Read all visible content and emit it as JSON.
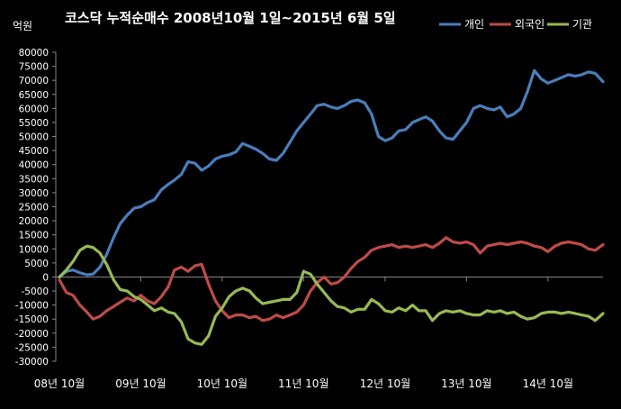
{
  "chart_data": {
    "type": "line",
    "title": "코스닥  누적순매수 2008년10월 1일~2015년 6월 5일",
    "unit_label": "억원",
    "ylim": [
      -30000,
      80000
    ],
    "y_ticks": [
      80000,
      75000,
      70000,
      65000,
      60000,
      55000,
      50000,
      45000,
      40000,
      35000,
      30000,
      25000,
      20000,
      15000,
      10000,
      5000,
      0,
      -5000,
      -10000,
      -15000,
      -20000,
      -25000,
      -30000
    ],
    "x_tick_labels": [
      "08년 10월",
      "09년 10월",
      "10년 10월",
      "11년 10월",
      "12년 10월",
      "13년 10월",
      "14년 10월"
    ],
    "grid": false,
    "legend_position": "top-right",
    "xlim": [
      "2008-10-01",
      "2015-06-05"
    ],
    "series": [
      {
        "name": "개인",
        "color": "#4a7ebb",
        "x": [
          "2008-10-01",
          "2008-11-01",
          "2008-12-01",
          "2009-01-01",
          "2009-02-01",
          "2009-03-01",
          "2009-04-01",
          "2009-05-01",
          "2009-06-01",
          "2009-07-01",
          "2009-08-01",
          "2009-09-01",
          "2009-10-01",
          "2009-11-01",
          "2009-12-01",
          "2010-01-01",
          "2010-02-01",
          "2010-03-01",
          "2010-04-01",
          "2010-05-01",
          "2010-06-01",
          "2010-07-01",
          "2010-08-01",
          "2010-09-01",
          "2010-10-01",
          "2010-11-01",
          "2010-12-01",
          "2011-01-01",
          "2011-02-01",
          "2011-03-01",
          "2011-04-01",
          "2011-05-01",
          "2011-06-01",
          "2011-07-01",
          "2011-08-01",
          "2011-09-01",
          "2011-10-01",
          "2011-11-01",
          "2011-12-01",
          "2012-01-01",
          "2012-02-01",
          "2012-03-01",
          "2012-04-01",
          "2012-05-01",
          "2012-06-01",
          "2012-07-01",
          "2012-08-01",
          "2012-09-01",
          "2012-10-01",
          "2012-11-01",
          "2012-12-01",
          "2013-01-01",
          "2013-02-01",
          "2013-03-01",
          "2013-04-01",
          "2013-05-01",
          "2013-06-01",
          "2013-07-01",
          "2013-08-01",
          "2013-09-01",
          "2013-10-01",
          "2013-11-01",
          "2013-12-01",
          "2014-01-01",
          "2014-02-01",
          "2014-03-01",
          "2014-04-01",
          "2014-05-01",
          "2014-06-01",
          "2014-07-01",
          "2014-08-01",
          "2014-09-01",
          "2014-10-01",
          "2014-11-01",
          "2014-12-01",
          "2015-01-01",
          "2015-02-01",
          "2015-03-01",
          "2015-04-01",
          "2015-05-01",
          "2015-06-05"
        ],
        "values": [
          0,
          2000,
          2500,
          1500,
          800,
          1000,
          3500,
          8000,
          14000,
          19000,
          22000,
          24500,
          25000,
          26500,
          27500,
          31000,
          33000,
          34500,
          36500,
          41000,
          40500,
          38000,
          39500,
          42000,
          43000,
          43500,
          44500,
          47500,
          46500,
          45500,
          44000,
          42000,
          41500,
          44000,
          48000,
          52000,
          55000,
          58000,
          61000,
          61500,
          60500,
          60000,
          61000,
          62500,
          63000,
          62000,
          58000,
          50000,
          48500,
          49500,
          52000,
          52500,
          55000,
          56000,
          57000,
          55500,
          52000,
          49500,
          49000,
          52000,
          55000,
          60000,
          61000,
          60000,
          59500,
          60500,
          57000,
          58000,
          60000,
          66000,
          73500,
          70500,
          69000,
          70000,
          71000,
          72000,
          71500,
          72000,
          73000,
          72500,
          69500
        ],
        "x_cut": 67
      },
      {
        "name": "외국인",
        "color": "#be4b48",
        "x": [
          "2008-10-01",
          "2008-11-01",
          "2008-12-01",
          "2009-01-01",
          "2009-02-01",
          "2009-03-01",
          "2009-04-01",
          "2009-05-01",
          "2009-06-01",
          "2009-07-01",
          "2009-08-01",
          "2009-09-01",
          "2009-10-01",
          "2009-11-01",
          "2009-12-01",
          "2010-01-01",
          "2010-02-01",
          "2010-03-01",
          "2010-04-01",
          "2010-05-01",
          "2010-06-01",
          "2010-07-01",
          "2010-08-01",
          "2010-09-01",
          "2010-10-01",
          "2010-11-01",
          "2010-12-01",
          "2011-01-01",
          "2011-02-01",
          "2011-03-01",
          "2011-04-01",
          "2011-05-01",
          "2011-06-01",
          "2011-07-01",
          "2011-08-01",
          "2011-09-01",
          "2011-10-01",
          "2011-11-01",
          "2011-12-01",
          "2012-01-01",
          "2012-02-01",
          "2012-03-01",
          "2012-04-01",
          "2012-05-01",
          "2012-06-01",
          "2012-07-01",
          "2012-08-01",
          "2012-09-01",
          "2012-10-01",
          "2012-11-01",
          "2012-12-01",
          "2013-01-01",
          "2013-02-01",
          "2013-03-01",
          "2013-04-01",
          "2013-05-01",
          "2013-06-01",
          "2013-07-01",
          "2013-08-01",
          "2013-09-01",
          "2013-10-01",
          "2013-11-01",
          "2013-12-01",
          "2014-01-01",
          "2014-02-01",
          "2014-03-01",
          "2014-04-01",
          "2014-05-01",
          "2014-06-01",
          "2014-07-01",
          "2014-08-01",
          "2014-09-01",
          "2014-10-01",
          "2014-11-01",
          "2014-12-01",
          "2015-01-01",
          "2015-02-01",
          "2015-03-01",
          "2015-04-01",
          "2015-05-01",
          "2015-06-05"
        ],
        "values": [
          -1000,
          -5500,
          -6500,
          -10000,
          -12500,
          -15000,
          -14000,
          -12000,
          -10500,
          -9000,
          -7500,
          -8500,
          -6500,
          -8500,
          -9500,
          -7000,
          -3500,
          2500,
          3500,
          2000,
          4000,
          4500,
          -2500,
          -8500,
          -12000,
          -14500,
          -13500,
          -13500,
          -14500,
          -14000,
          -15500,
          -15000,
          -13500,
          -14500,
          -13500,
          -12500,
          -10000,
          -5000,
          -2000,
          0,
          -2500,
          -2000,
          0,
          3000,
          5500,
          7000,
          9500,
          10500,
          11000,
          11500,
          10500,
          11000,
          10500,
          11000,
          11500,
          10500,
          12000,
          14000,
          12500,
          12000,
          12500,
          11500,
          8500,
          11000,
          11500,
          12000,
          11500,
          12000,
          12500,
          12000,
          11000,
          10500,
          9000,
          11000,
          12000,
          12500,
          12000,
          11500,
          10000,
          9500,
          11500
        ],
        "x_cut": 67
      },
      {
        "name": "기관",
        "color": "#98b954",
        "x": [
          "2008-10-01",
          "2008-11-01",
          "2008-12-01",
          "2009-01-01",
          "2009-02-01",
          "2009-03-01",
          "2009-04-01",
          "2009-05-01",
          "2009-06-01",
          "2009-07-01",
          "2009-08-01",
          "2009-09-01",
          "2009-10-01",
          "2009-11-01",
          "2009-12-01",
          "2010-01-01",
          "2010-02-01",
          "2010-03-01",
          "2010-04-01",
          "2010-05-01",
          "2010-06-01",
          "2010-07-01",
          "2010-08-01",
          "2010-09-01",
          "2010-10-01",
          "2010-11-01",
          "2010-12-01",
          "2011-01-01",
          "2011-02-01",
          "2011-03-01",
          "2011-04-01",
          "2011-05-01",
          "2011-06-01",
          "2011-07-01",
          "2011-08-01",
          "2011-09-01",
          "2011-10-01",
          "2011-11-01",
          "2011-12-01",
          "2012-01-01",
          "2012-02-01",
          "2012-03-01",
          "2012-04-01",
          "2012-05-01",
          "2012-06-01",
          "2012-07-01",
          "2012-08-01",
          "2012-09-01",
          "2012-10-01",
          "2012-11-01",
          "2012-12-01",
          "2013-01-01",
          "2013-02-01",
          "2013-03-01",
          "2013-04-01",
          "2013-05-01",
          "2013-06-01",
          "2013-07-01",
          "2013-08-01",
          "2013-09-01",
          "2013-10-01",
          "2013-11-01",
          "2013-12-01",
          "2014-01-01",
          "2014-02-01",
          "2014-03-01",
          "2014-04-01",
          "2014-05-01",
          "2014-06-01",
          "2014-07-01",
          "2014-08-01",
          "2014-09-01",
          "2014-10-01",
          "2014-11-01",
          "2014-12-01",
          "2015-01-01",
          "2015-02-01",
          "2015-03-01",
          "2015-04-01",
          "2015-05-01",
          "2015-06-05"
        ],
        "values": [
          0,
          2500,
          5500,
          9500,
          11000,
          10500,
          8500,
          4500,
          -1000,
          -4500,
          -5000,
          -7000,
          -8000,
          -10000,
          -12000,
          -11000,
          -12500,
          -13000,
          -16000,
          -22000,
          -23500,
          -24000,
          -21000,
          -14000,
          -11000,
          -7000,
          -5000,
          -4000,
          -5000,
          -7500,
          -9500,
          -9000,
          -8500,
          -8000,
          -8000,
          -5500,
          2000,
          1000,
          -2500,
          -5500,
          -8500,
          -10500,
          -11000,
          -12500,
          -11500,
          -11500,
          -8000,
          -9500,
          -12000,
          -12500,
          -11000,
          -12000,
          -10000,
          -12000,
          -12000,
          -15500,
          -13000,
          -12000,
          -12500,
          -12000,
          -13000,
          -13500,
          -13500,
          -12000,
          -12500,
          -12000,
          -13000,
          -12500,
          -14000,
          -15000,
          -14500,
          -13000,
          -12500,
          -12500,
          -13000,
          -12500,
          -13000,
          -13500,
          -14000,
          -15500,
          -13000
        ],
        "x_cut": 67
      }
    ]
  }
}
